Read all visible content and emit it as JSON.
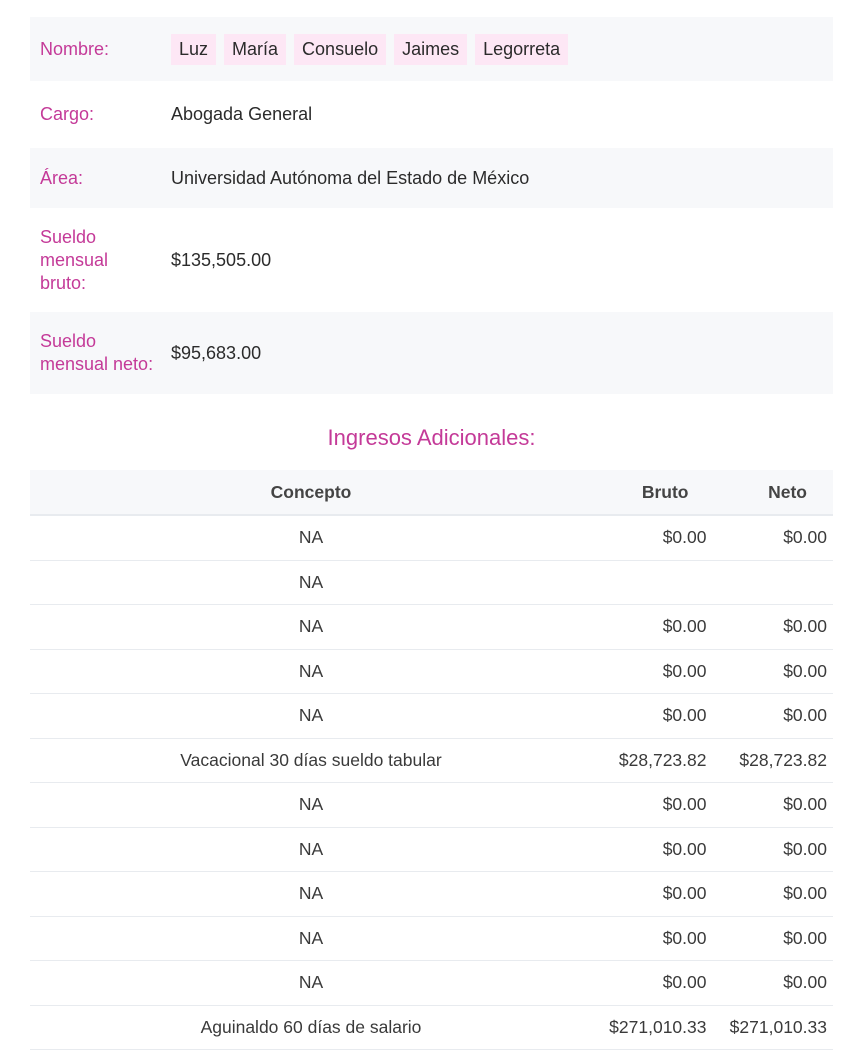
{
  "info": {
    "nombre_label": "Nombre:",
    "nombre": [
      "Luz",
      "María",
      "Consuelo",
      "Jaimes",
      "Legorreta"
    ],
    "cargo_label": "Cargo:",
    "cargo": "Abogada General",
    "area_label": "Área:",
    "area": "Universidad Autónoma del Estado de México",
    "bruto_label": "Sueldo mensual bruto:",
    "bruto": "$135,505.00",
    "neto_label": "Sueldo mensual neto:",
    "neto": "$95,683.00"
  },
  "colors": {
    "accent": "#c43a98",
    "chip": "#fde7f5",
    "stripe": "#f7f8fa"
  },
  "ingresos": {
    "title": "Ingresos Adicionales:",
    "headers": [
      "Concepto",
      "Bruto",
      "Neto"
    ],
    "rows": [
      [
        "NA",
        "$0.00",
        "$0.00"
      ],
      [
        "NA",
        "",
        ""
      ],
      [
        "NA",
        "$0.00",
        "$0.00"
      ],
      [
        "NA",
        "$0.00",
        "$0.00"
      ],
      [
        "NA",
        "$0.00",
        "$0.00"
      ],
      [
        "Vacacional 30 días sueldo tabular",
        "$28,723.82",
        "$28,723.82"
      ],
      [
        "NA",
        "$0.00",
        "$0.00"
      ],
      [
        "NA",
        "$0.00",
        "$0.00"
      ],
      [
        "NA",
        "$0.00",
        "$0.00"
      ],
      [
        "NA",
        "$0.00",
        "$0.00"
      ],
      [
        "NA",
        "$0.00",
        "$0.00"
      ],
      [
        "Aguinaldo 60 días de salario",
        "$271,010.33",
        "$271,010.33"
      ]
    ]
  }
}
